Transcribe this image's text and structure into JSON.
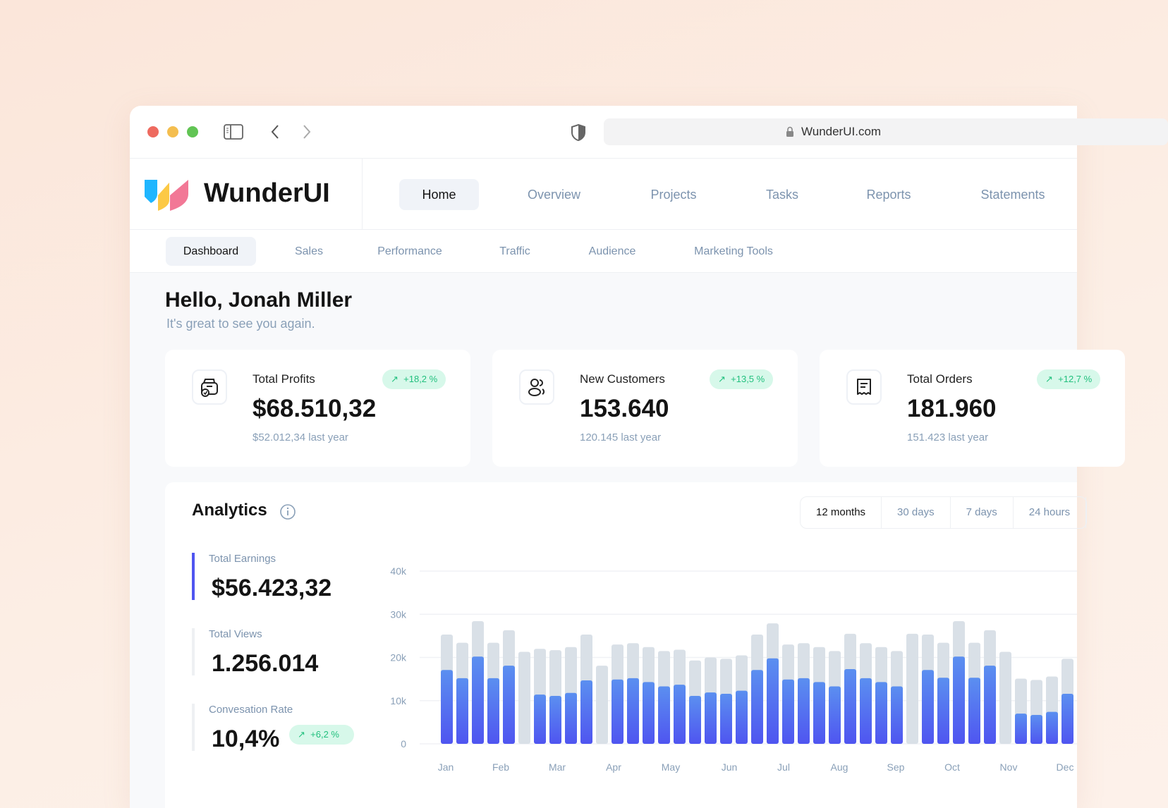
{
  "browser": {
    "url": "WunderUI.com",
    "icons": [
      "sidebar-toggle-icon",
      "back-icon",
      "forward-icon",
      "shield-icon",
      "lock-icon"
    ]
  },
  "brand": {
    "name": "WunderUI",
    "colors": [
      "#1fb6ff",
      "#fcc945",
      "#f27896"
    ]
  },
  "nav": [
    {
      "label": "Home",
      "active": true
    },
    {
      "label": "Overview"
    },
    {
      "label": "Projects"
    },
    {
      "label": "Tasks"
    },
    {
      "label": "Reports"
    },
    {
      "label": "Statements"
    }
  ],
  "subnav": [
    {
      "label": "Dashboard",
      "active": true
    },
    {
      "label": "Sales"
    },
    {
      "label": "Performance"
    },
    {
      "label": "Traffic"
    },
    {
      "label": "Audience"
    },
    {
      "label": "Marketing Tools"
    }
  ],
  "greeting": {
    "title": "Hello, Jonah Miller",
    "subtitle": "It's great to see you again."
  },
  "cards": [
    {
      "title": "Total Profits",
      "value": "$68.510,32",
      "sub": "$52.012,34 last year",
      "badge": "+18,2 %",
      "icon": "wallet-icon"
    },
    {
      "title": "New Customers",
      "value": "153.640",
      "sub": "120.145 last year",
      "badge": "+13,5 %",
      "icon": "users-icon"
    },
    {
      "title": "Total Orders",
      "value": "181.960",
      "sub": "151.423 last year",
      "badge": "+12,7 %",
      "icon": "receipt-icon"
    }
  ],
  "analytics": {
    "title": "Analytics",
    "ranges": [
      {
        "label": "12 months",
        "active": true
      },
      {
        "label": "30 days"
      },
      {
        "label": "7 days"
      },
      {
        "label": "24 hours"
      }
    ],
    "stats": [
      {
        "label": "Total Earnings",
        "value": "$56.423,32",
        "active": true
      },
      {
        "label": "Total Views",
        "value": "1.256.014"
      },
      {
        "label": "Convesation Rate",
        "value": "10,4%",
        "badge": "+6,2 %"
      }
    ]
  },
  "colors": {
    "accent": "#4f55f0",
    "accent_light": "#5b8ff0",
    "bar_bg": "#d9e0e7",
    "positive": "#22c07e",
    "positive_bg": "#d7f8ea"
  },
  "chart_data": {
    "type": "bar",
    "ylim": [
      0,
      40000
    ],
    "yticks": [
      "0",
      "10k",
      "20k",
      "30k",
      "40k"
    ],
    "xlabels": [
      "Jan",
      "Feb",
      "Mar",
      "Apr",
      "May",
      "Jun",
      "Jul",
      "Aug",
      "Sep",
      "Oct",
      "Nov",
      "Dec"
    ],
    "grid": true,
    "series": [
      {
        "values": [
          25300,
          23400,
          28400,
          23400,
          26300,
          21300,
          22000,
          21700,
          22400,
          25300,
          18100,
          23000,
          23300,
          22400,
          21500,
          21800,
          19300,
          20000,
          19700,
          20500,
          25300,
          27900,
          23000,
          23300,
          22400,
          21500,
          25500,
          23300,
          22400,
          21500,
          25500,
          25300,
          23400,
          28400,
          23400,
          26300,
          21300,
          15100,
          14800,
          15600,
          19700
        ]
      },
      {
        "values": [
          17100,
          15200,
          20200,
          15200,
          18100,
          0,
          11400,
          11100,
          11800,
          14700,
          0,
          14900,
          15200,
          14300,
          13300,
          13700,
          11100,
          11900,
          11600,
          12300,
          17100,
          19800,
          14900,
          15200,
          14300,
          13300,
          17300,
          15200,
          14300,
          13300,
          0,
          17100,
          15300,
          20200,
          15300,
          18100,
          0,
          7000,
          6700,
          7400,
          11600
        ]
      }
    ]
  }
}
